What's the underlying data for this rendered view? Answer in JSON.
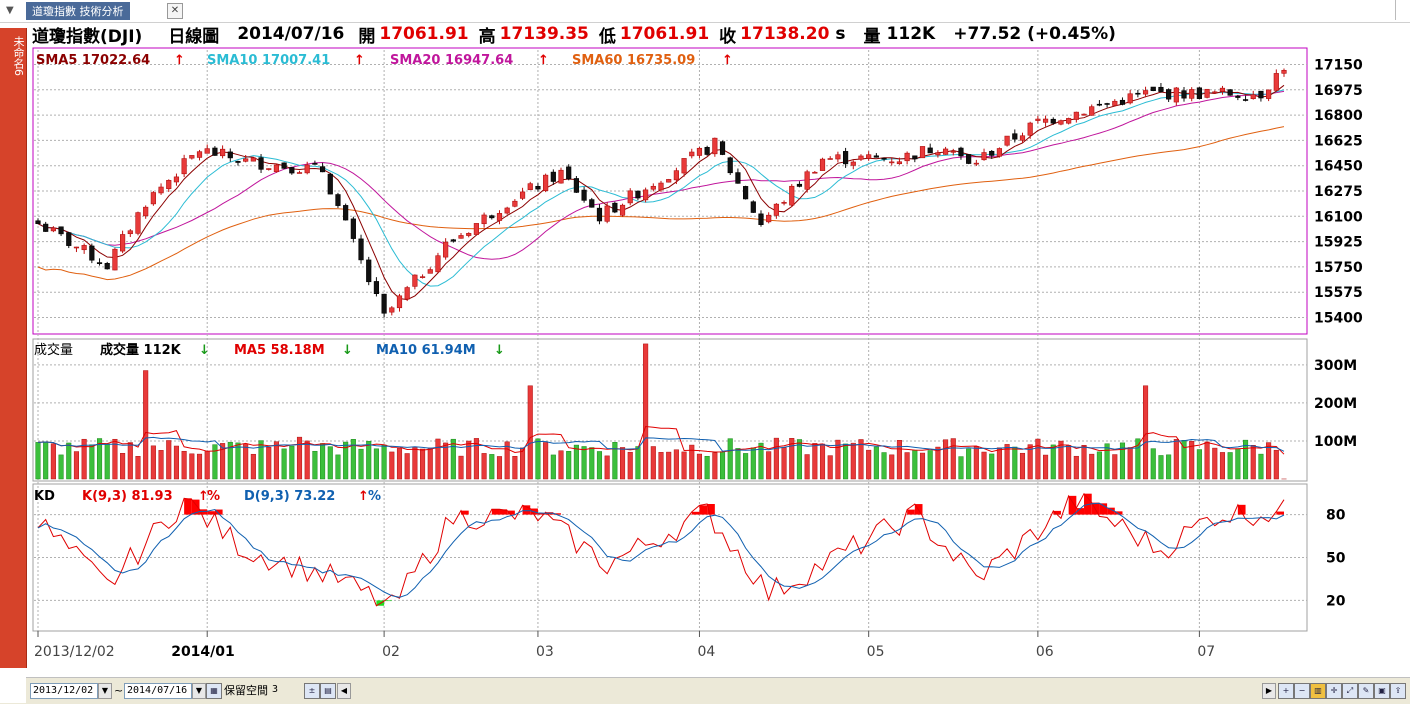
{
  "tab": {
    "title": "道瓊指數 技術分析",
    "close": "✕"
  },
  "ribbon": {
    "label": "未命名6"
  },
  "header": {
    "name": "道瓊指數(DJI)",
    "period": "日線圖",
    "date": "2014/07/16",
    "open_label": "開",
    "open": "17061.91",
    "high_label": "高",
    "high": "17139.35",
    "low_label": "低",
    "low": "17061.91",
    "close_label": "收",
    "close": "17138.20",
    "close_suffix": "s",
    "vol_label": "量",
    "vol": "112K",
    "change": "+77.52 (+0.45%)"
  },
  "colors": {
    "up": "#e83a3a",
    "down": "#111111",
    "vol_up": "#e83a3a",
    "vol_down": "#3cbf3c",
    "sma5": "#8b0000",
    "sma10": "#2bbcd4",
    "sma20": "#c0169c",
    "sma60": "#e06010",
    "k": "#e00000",
    "d": "#1060b0"
  },
  "price_panel": {
    "legend": [
      {
        "label": "SMA5 17022.64",
        "arrow": "up"
      },
      {
        "label": "SMA10 17007.41",
        "arrow": "up"
      },
      {
        "label": "SMA20 16947.64",
        "arrow": "up"
      },
      {
        "label": "SMA60 16735.09",
        "arrow": "up"
      }
    ],
    "ticks": [
      "17150",
      "16975",
      "16800",
      "16625",
      "16450",
      "16275",
      "16100",
      "15925",
      "15750",
      "15575",
      "15400"
    ]
  },
  "volume_panel": {
    "title": "成交量",
    "legend": [
      {
        "label": "成交量 112K",
        "arrow": "down"
      },
      {
        "label": "MA5 58.18M",
        "arrow": "down"
      },
      {
        "label": "MA10 61.94M",
        "arrow": "down"
      }
    ],
    "ticks": [
      "300M",
      "200M",
      "100M"
    ]
  },
  "kd_panel": {
    "title": "KD",
    "legend": [
      {
        "label": "K(9,3) 81.93",
        "arrow": "up",
        "suffix": "%"
      },
      {
        "label": "D(9,3) 73.22",
        "arrow": "up",
        "suffix": "%"
      }
    ],
    "ticks": [
      "80",
      "50",
      "20"
    ]
  },
  "x_axis": [
    "2013/12/02",
    "2014/01",
    "02",
    "03",
    "04",
    "05",
    "06",
    "07"
  ],
  "bottom": {
    "start_date": "2013/12/02",
    "tilde": "~",
    "end_date": "2014/07/16",
    "reserve_label": "保留空間",
    "reserve_value": "3"
  },
  "chart_data": {
    "type": "candlestick",
    "x_range": [
      "2013/12/02",
      "2014/07/16"
    ],
    "price_ylim": [
      15300,
      17250
    ],
    "volume_ylim": [
      0,
      360
    ],
    "kd_ylim": [
      0,
      100
    ],
    "anchors_close": [
      {
        "x": "2013/12/02",
        "y": 16050
      },
      {
        "x": "2013/12/13",
        "y": 15760
      },
      {
        "x": "2013/12/20",
        "y": 16200
      },
      {
        "x": "2013/12/31",
        "y": 16560
      },
      {
        "x": "2014/01/08",
        "y": 16480
      },
      {
        "x": "2014/01/22",
        "y": 16420
      },
      {
        "x": "2014/02/03",
        "y": 15400
      },
      {
        "x": "2014/02/13",
        "y": 15900
      },
      {
        "x": "2014/02/25",
        "y": 16200
      },
      {
        "x": "2014/03/06",
        "y": 16400
      },
      {
        "x": "2014/03/13",
        "y": 16100
      },
      {
        "x": "2014/04/03",
        "y": 16600
      },
      {
        "x": "2014/04/11",
        "y": 16050
      },
      {
        "x": "2014/04/23",
        "y": 16500
      },
      {
        "x": "2014/05/07",
        "y": 16500
      },
      {
        "x": "2014/05/15",
        "y": 16600
      },
      {
        "x": "2014/05/20",
        "y": 16450
      },
      {
        "x": "2014/06/02",
        "y": 16750
      },
      {
        "x": "2014/06/20",
        "y": 16950
      },
      {
        "x": "2014/07/02",
        "y": 16950
      },
      {
        "x": "2014/07/11",
        "y": 16950
      },
      {
        "x": "2014/07/16",
        "y": 17138
      }
    ],
    "volume_spikes_M": [
      {
        "x": "2013/12/20",
        "y": 285
      },
      {
        "x": "2014/01/17",
        "y": 110
      },
      {
        "x": "2014/02/28",
        "y": 245
      },
      {
        "x": "2014/03/21",
        "y": 355
      },
      {
        "x": "2014/06/20",
        "y": 245
      }
    ],
    "volume_baseline_M": 90,
    "kd_anchors": [
      {
        "x": "2013/12/02",
        "y": 75
      },
      {
        "x": "2013/12/13",
        "y": 30
      },
      {
        "x": "2013/12/27",
        "y": 90
      },
      {
        "x": "2014/01/08",
        "y": 55
      },
      {
        "x": "2014/01/24",
        "y": 35
      },
      {
        "x": "2014/02/04",
        "y": 15
      },
      {
        "x": "2014/02/14",
        "y": 78
      },
      {
        "x": "2014/03/03",
        "y": 80
      },
      {
        "x": "2014/03/14",
        "y": 45
      },
      {
        "x": "2014/04/02",
        "y": 82
      },
      {
        "x": "2014/04/14",
        "y": 25
      },
      {
        "x": "2014/05/09",
        "y": 80
      },
      {
        "x": "2014/05/21",
        "y": 35
      },
      {
        "x": "2014/06/09",
        "y": 90
      },
      {
        "x": "2014/06/24",
        "y": 55
      },
      {
        "x": "2014/07/03",
        "y": 80
      },
      {
        "x": "2014/07/16",
        "y": 81.93
      }
    ]
  }
}
